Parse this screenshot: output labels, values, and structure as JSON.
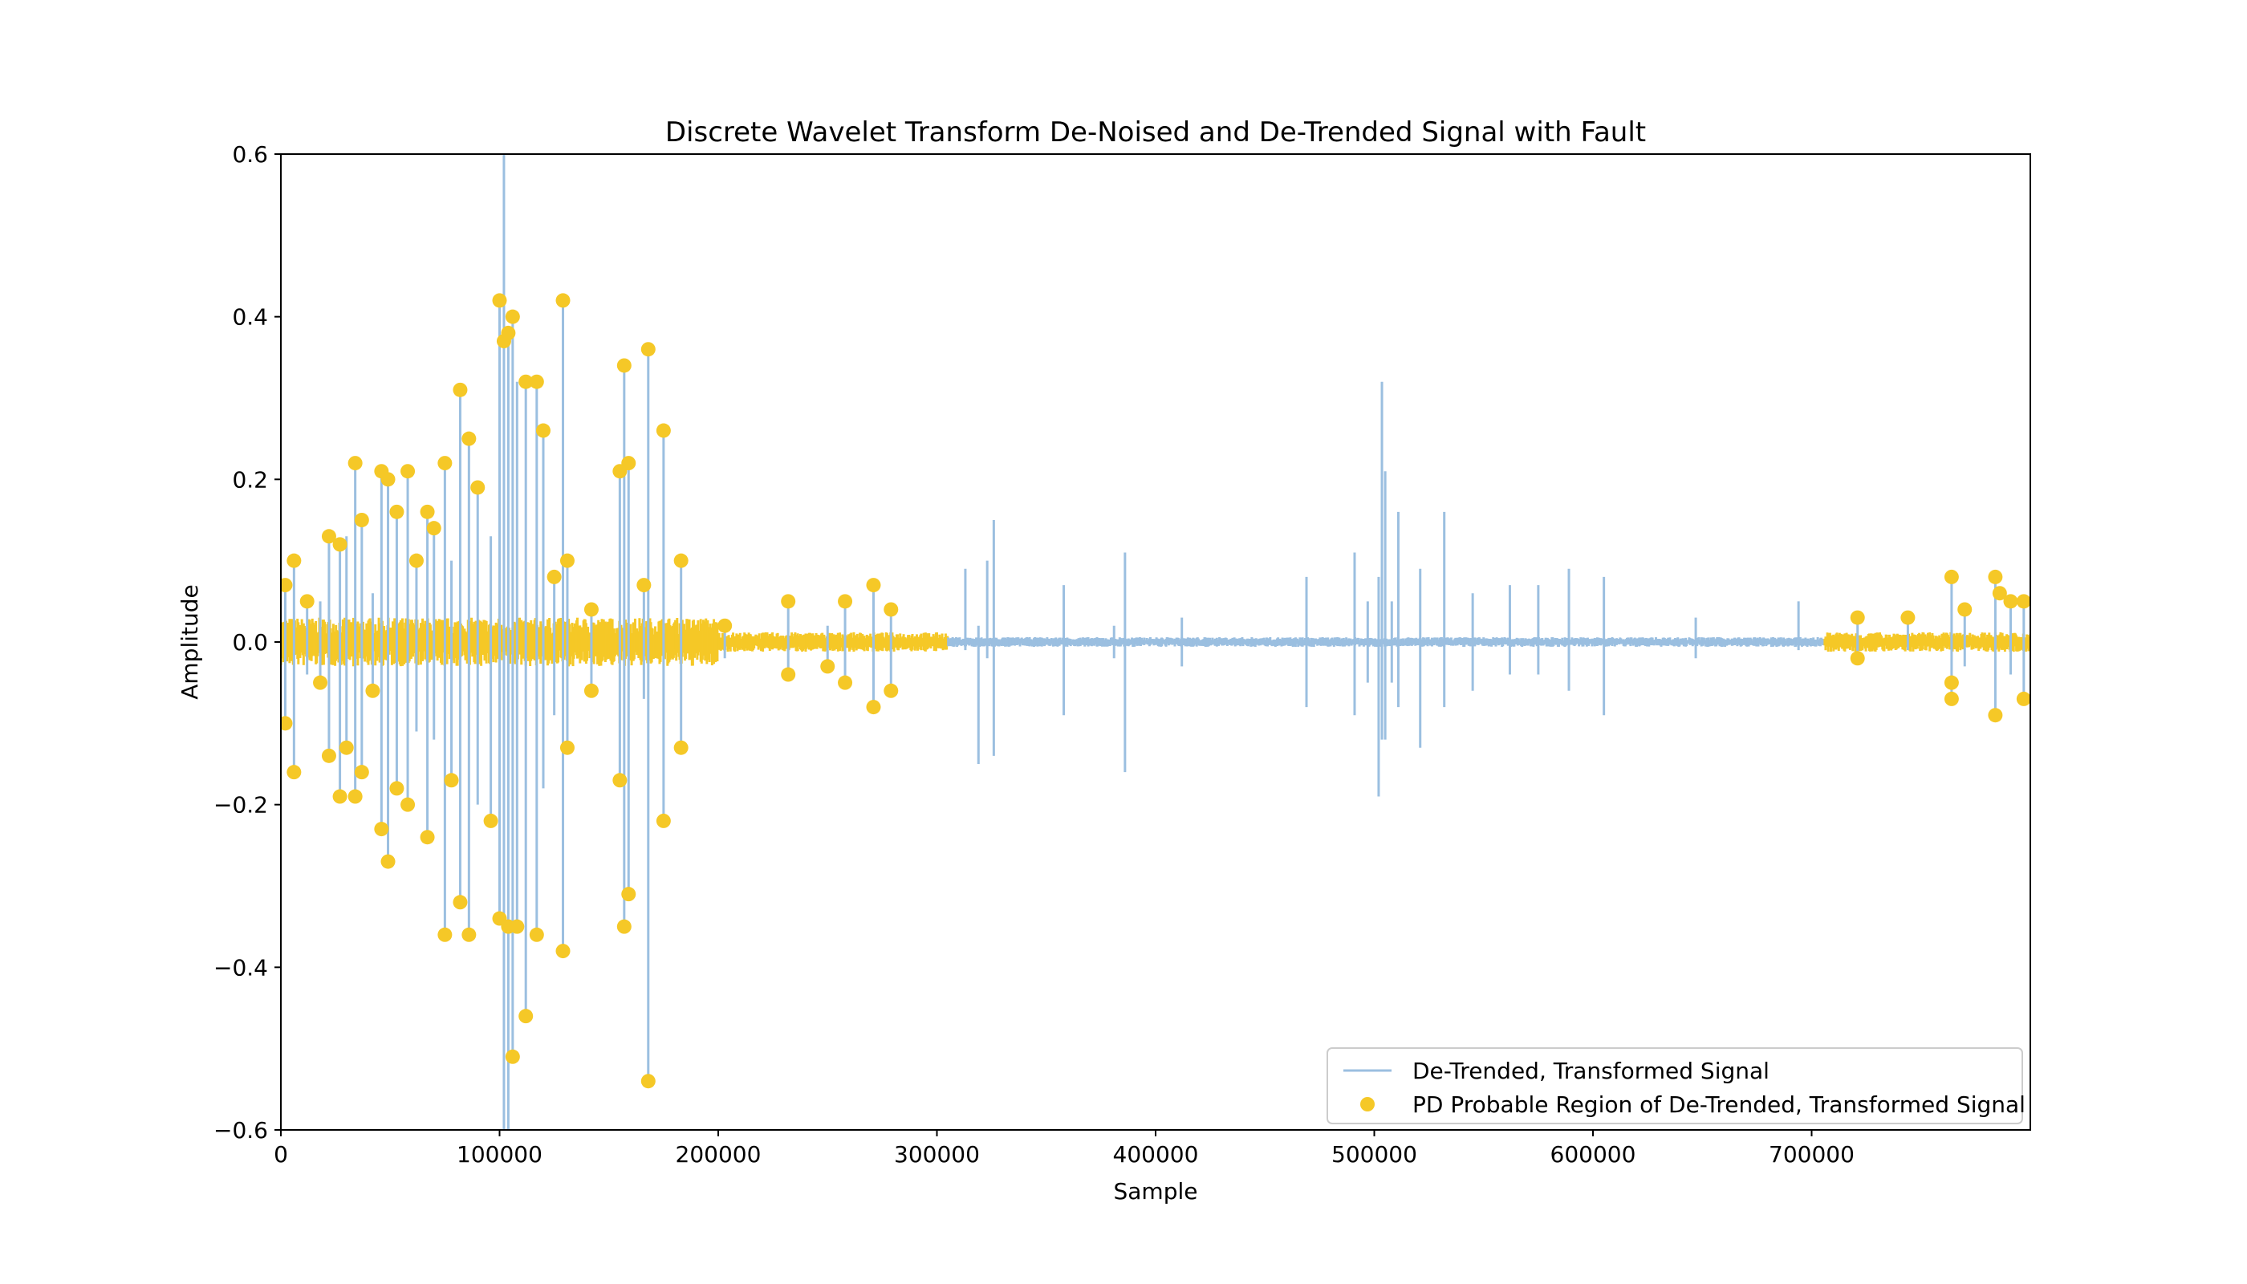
{
  "chart_data": {
    "type": "line",
    "title": "Discrete Wavelet Transform De-Noised and De-Trended Signal with Fault",
    "xlabel": "Sample",
    "ylabel": "Amplitude",
    "xlim": [
      0,
      800000
    ],
    "ylim": [
      -0.6,
      0.6
    ],
    "x_ticks": [
      0,
      100000,
      200000,
      300000,
      400000,
      500000,
      600000,
      700000
    ],
    "x_tick_labels": [
      "0",
      "100000",
      "200000",
      "300000",
      "400000",
      "500000",
      "600000",
      "700000"
    ],
    "y_ticks": [
      -0.6,
      -0.4,
      -0.2,
      0.0,
      0.2,
      0.4,
      0.6
    ],
    "y_tick_labels": [
      "−0.6",
      "−0.4",
      "−0.2",
      "0.0",
      "0.2",
      "0.4",
      "0.6"
    ],
    "grid": false,
    "legend_position": "bottom-right",
    "series": [
      {
        "name": "De-Trended, Transformed Signal",
        "kind": "line",
        "color": "#9bbfe0",
        "spikes": [
          [
            2000,
            0.07,
            -0.1
          ],
          [
            6000,
            0.1,
            -0.16
          ],
          [
            12000,
            0.05,
            -0.04
          ],
          [
            18000,
            0.05,
            -0.05
          ],
          [
            22000,
            0.13,
            -0.14
          ],
          [
            27000,
            0.12,
            -0.19
          ],
          [
            30000,
            0.13,
            -0.13
          ],
          [
            34000,
            0.22,
            -0.19
          ],
          [
            37000,
            0.15,
            -0.16
          ],
          [
            42000,
            0.06,
            -0.06
          ],
          [
            46000,
            0.21,
            -0.23
          ],
          [
            49000,
            0.2,
            -0.27
          ],
          [
            53000,
            0.16,
            -0.18
          ],
          [
            58000,
            0.21,
            -0.2
          ],
          [
            62000,
            0.1,
            -0.11
          ],
          [
            67000,
            0.16,
            -0.24
          ],
          [
            70000,
            0.14,
            -0.12
          ],
          [
            75000,
            0.22,
            -0.36
          ],
          [
            78000,
            0.1,
            -0.17
          ],
          [
            82000,
            0.31,
            -0.32
          ],
          [
            86000,
            0.25,
            -0.36
          ],
          [
            90000,
            0.19,
            -0.2
          ],
          [
            96000,
            0.13,
            -0.22
          ],
          [
            100000,
            0.42,
            -0.34
          ],
          [
            102000,
            0.6,
            -0.6
          ],
          [
            104000,
            0.38,
            -0.6
          ],
          [
            106000,
            0.4,
            -0.51
          ],
          [
            108000,
            0.32,
            -0.35
          ],
          [
            112000,
            0.32,
            -0.46
          ],
          [
            117000,
            0.32,
            -0.36
          ],
          [
            120000,
            0.26,
            -0.18
          ],
          [
            125000,
            0.08,
            -0.09
          ],
          [
            129000,
            0.42,
            -0.38
          ],
          [
            131000,
            0.1,
            -0.13
          ],
          [
            142000,
            0.04,
            -0.06
          ],
          [
            155000,
            0.21,
            -0.17
          ],
          [
            157000,
            0.34,
            -0.35
          ],
          [
            159000,
            0.22,
            -0.31
          ],
          [
            166000,
            0.07,
            -0.07
          ],
          [
            168000,
            0.36,
            -0.54
          ],
          [
            175000,
            0.26,
            -0.22
          ],
          [
            183000,
            0.1,
            -0.13
          ],
          [
            203000,
            0.02,
            -0.02
          ],
          [
            232000,
            0.05,
            -0.04
          ],
          [
            250000,
            0.02,
            -0.03
          ],
          [
            258000,
            0.05,
            -0.05
          ],
          [
            271000,
            0.07,
            -0.08
          ],
          [
            279000,
            0.04,
            -0.06
          ],
          [
            313000,
            0.09,
            -0.01
          ],
          [
            319000,
            0.02,
            -0.15
          ],
          [
            323000,
            0.1,
            -0.02
          ],
          [
            326000,
            0.15,
            -0.14
          ],
          [
            358000,
            0.07,
            -0.09
          ],
          [
            381000,
            0.02,
            -0.02
          ],
          [
            386000,
            0.11,
            -0.16
          ],
          [
            412000,
            0.03,
            -0.03
          ],
          [
            469000,
            0.08,
            -0.08
          ],
          [
            491000,
            0.11,
            -0.09
          ],
          [
            497000,
            0.05,
            -0.05
          ],
          [
            502000,
            0.08,
            -0.19
          ],
          [
            503500,
            0.32,
            -0.12
          ],
          [
            505000,
            0.21,
            -0.12
          ],
          [
            508000,
            0.05,
            -0.05
          ],
          [
            511000,
            0.16,
            -0.08
          ],
          [
            521000,
            0.09,
            -0.13
          ],
          [
            532000,
            0.16,
            -0.08
          ],
          [
            545000,
            0.06,
            -0.06
          ],
          [
            562000,
            0.07,
            -0.04
          ],
          [
            575000,
            0.07,
            -0.04
          ],
          [
            589000,
            0.09,
            -0.06
          ],
          [
            605000,
            0.08,
            -0.09
          ],
          [
            647000,
            0.03,
            -0.02
          ],
          [
            694000,
            0.05,
            -0.01
          ],
          [
            721000,
            0.03,
            -0.02
          ],
          [
            744000,
            0.03,
            -0.01
          ],
          [
            764000,
            0.08,
            -0.07
          ],
          [
            770000,
            0.04,
            -0.03
          ],
          [
            784000,
            0.08,
            -0.09
          ],
          [
            791000,
            0.05,
            -0.04
          ],
          [
            797000,
            0.05,
            -0.07
          ]
        ]
      },
      {
        "name": "PD Probable Region of De-Trended, Transformed Signal",
        "kind": "scatter",
        "color": "#f5c827",
        "regions": [
          [
            0,
            305000
          ],
          [
            706000,
            800000
          ]
        ],
        "points": [
          [
            2000,
            0.07
          ],
          [
            2000,
            -0.1
          ],
          [
            6000,
            0.1
          ],
          [
            6000,
            -0.16
          ],
          [
            12000,
            0.05
          ],
          [
            18000,
            -0.05
          ],
          [
            22000,
            0.13
          ],
          [
            22000,
            -0.14
          ],
          [
            27000,
            0.12
          ],
          [
            27000,
            -0.19
          ],
          [
            30000,
            -0.13
          ],
          [
            34000,
            0.22
          ],
          [
            34000,
            -0.19
          ],
          [
            37000,
            0.15
          ],
          [
            37000,
            -0.16
          ],
          [
            42000,
            -0.06
          ],
          [
            46000,
            0.21
          ],
          [
            46000,
            -0.23
          ],
          [
            49000,
            0.2
          ],
          [
            49000,
            -0.27
          ],
          [
            53000,
            0.16
          ],
          [
            53000,
            -0.18
          ],
          [
            58000,
            0.21
          ],
          [
            58000,
            -0.2
          ],
          [
            62000,
            0.1
          ],
          [
            67000,
            0.16
          ],
          [
            67000,
            -0.24
          ],
          [
            70000,
            0.14
          ],
          [
            75000,
            0.22
          ],
          [
            75000,
            -0.36
          ],
          [
            78000,
            -0.17
          ],
          [
            82000,
            0.31
          ],
          [
            82000,
            -0.32
          ],
          [
            86000,
            0.25
          ],
          [
            86000,
            -0.36
          ],
          [
            90000,
            0.19
          ],
          [
            96000,
            -0.22
          ],
          [
            100000,
            0.42
          ],
          [
            100000,
            -0.34
          ],
          [
            102000,
            0.37
          ],
          [
            104000,
            0.38
          ],
          [
            104000,
            -0.35
          ],
          [
            106000,
            0.4
          ],
          [
            106000,
            -0.51
          ],
          [
            108000,
            -0.35
          ],
          [
            112000,
            0.32
          ],
          [
            112000,
            -0.46
          ],
          [
            117000,
            0.32
          ],
          [
            117000,
            -0.36
          ],
          [
            120000,
            0.26
          ],
          [
            125000,
            0.08
          ],
          [
            129000,
            0.42
          ],
          [
            129000,
            -0.38
          ],
          [
            131000,
            0.1
          ],
          [
            131000,
            -0.13
          ],
          [
            142000,
            0.04
          ],
          [
            142000,
            -0.06
          ],
          [
            155000,
            0.21
          ],
          [
            155000,
            -0.17
          ],
          [
            157000,
            0.34
          ],
          [
            157000,
            -0.35
          ],
          [
            159000,
            0.22
          ],
          [
            159000,
            -0.31
          ],
          [
            166000,
            0.07
          ],
          [
            168000,
            0.36
          ],
          [
            168000,
            -0.54
          ],
          [
            175000,
            0.26
          ],
          [
            175000,
            -0.22
          ],
          [
            183000,
            0.1
          ],
          [
            183000,
            -0.13
          ],
          [
            203000,
            0.02
          ],
          [
            232000,
            0.05
          ],
          [
            232000,
            -0.04
          ],
          [
            250000,
            -0.03
          ],
          [
            258000,
            0.05
          ],
          [
            258000,
            -0.05
          ],
          [
            271000,
            0.07
          ],
          [
            271000,
            -0.08
          ],
          [
            279000,
            0.04
          ],
          [
            279000,
            -0.06
          ],
          [
            721000,
            0.03
          ],
          [
            721000,
            -0.02
          ],
          [
            744000,
            0.03
          ],
          [
            764000,
            0.08
          ],
          [
            764000,
            -0.07
          ],
          [
            764000,
            -0.05
          ],
          [
            770000,
            0.04
          ],
          [
            784000,
            0.08
          ],
          [
            784000,
            -0.09
          ],
          [
            786000,
            0.06
          ],
          [
            791000,
            0.05
          ],
          [
            797000,
            0.05
          ],
          [
            797000,
            -0.07
          ]
        ]
      }
    ]
  }
}
